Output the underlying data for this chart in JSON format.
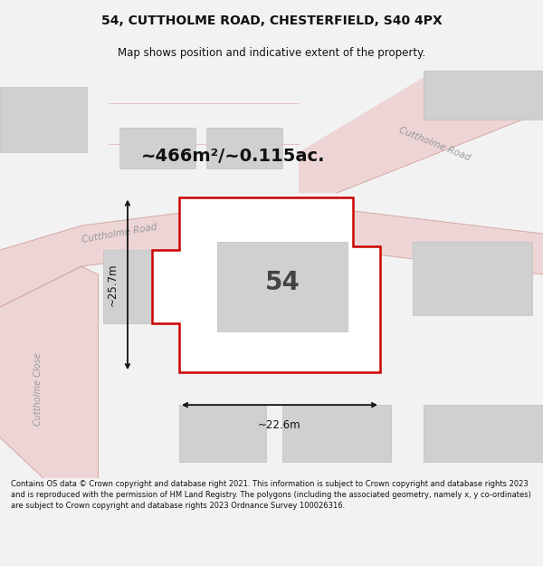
{
  "title_line1": "54, CUTTHOLME ROAD, CHESTERFIELD, S40 4PX",
  "title_line2": "Map shows position and indicative extent of the property.",
  "area_label": "~466m²/~0.115ac.",
  "property_number": "54",
  "dim_vertical": "~25.7m",
  "dim_horizontal": "~22.6m",
  "road_label_diag": "Cuttholme Road",
  "road_label_upper": "Cuttholme Road",
  "road_label_close": "Cuttholme Close",
  "footer_text": "Contains OS data © Crown copyright and database right 2021. This information is subject to Crown copyright and database rights 2023 and is reproduced with the permission of HM Land Registry. The polygons (including the associated geometry, namely x, y co-ordinates) are subject to Crown copyright and database rights 2023 Ordnance Survey 100026316.",
  "bg_color": "#f2f2f2",
  "map_bg": "#f8f8f8",
  "property_edge": "#cc0000",
  "building_fill": "#d0d0d0",
  "building_edge": "#c0c0c0",
  "road_fill": "#edd5d5",
  "road_edge": "#d4a8a8",
  "dim_color": "#111111",
  "label_color": "#999999",
  "text_color": "#111111"
}
